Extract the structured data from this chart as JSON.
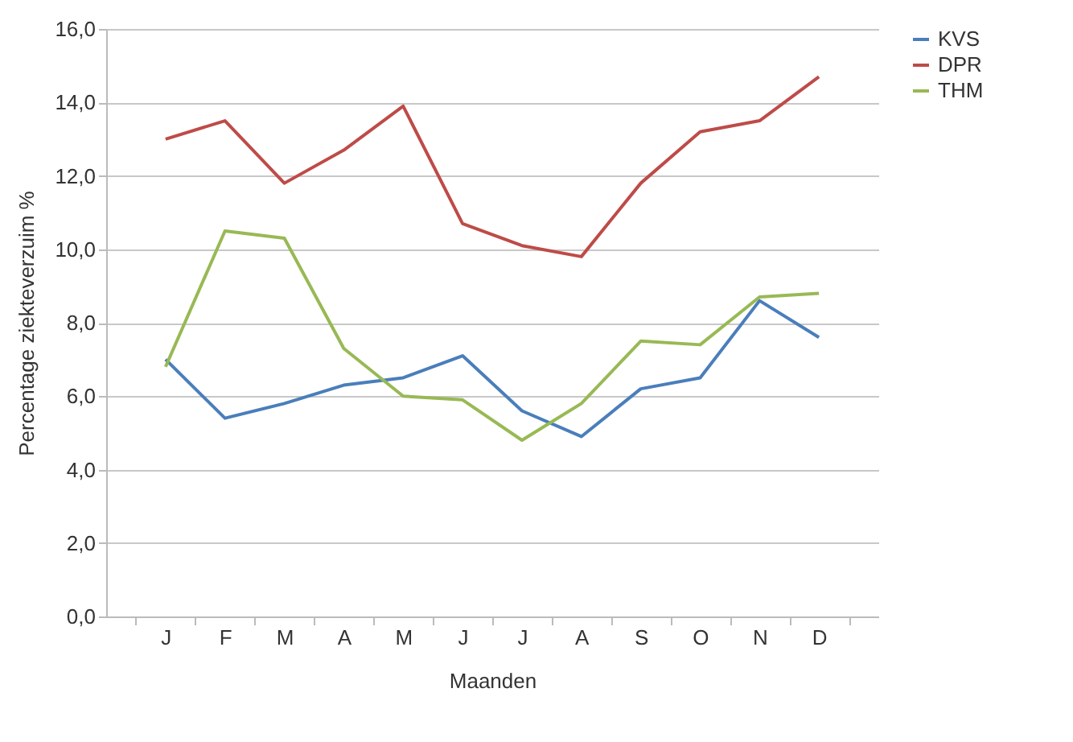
{
  "chart_data": {
    "type": "line",
    "xlabel": "Maanden",
    "ylabel": "Percentage ziekteverzuim %",
    "categories": [
      "J",
      "F",
      "M",
      "A",
      "M",
      "J",
      "J",
      "A",
      "S",
      "O",
      "N",
      "D"
    ],
    "series": [
      {
        "name": "KVS",
        "color": "#4a7ebb",
        "values": [
          7.0,
          5.4,
          5.8,
          6.3,
          6.5,
          7.1,
          5.6,
          4.9,
          6.2,
          6.5,
          8.6,
          7.6
        ]
      },
      {
        "name": "DPR",
        "color": "#be4b48",
        "values": [
          13.0,
          13.5,
          11.8,
          12.7,
          13.9,
          10.7,
          10.1,
          9.8,
          11.8,
          13.2,
          13.5,
          14.7
        ]
      },
      {
        "name": "THM",
        "color": "#98b954",
        "values": [
          6.8,
          10.5,
          10.3,
          7.3,
          6.0,
          5.9,
          4.8,
          5.8,
          7.5,
          7.4,
          8.7,
          8.8
        ]
      }
    ],
    "ylim": [
      0,
      16
    ],
    "yticks": [
      {
        "value": 0,
        "label": "0,0"
      },
      {
        "value": 2,
        "label": "2,0"
      },
      {
        "value": 4,
        "label": "4,0"
      },
      {
        "value": 6,
        "label": "6,0"
      },
      {
        "value": 8,
        "label": "8,0"
      },
      {
        "value": 10,
        "label": "10,0"
      },
      {
        "value": 12,
        "label": "12,0"
      },
      {
        "value": 14,
        "label": "14,0"
      },
      {
        "value": 16,
        "label": "16,0"
      }
    ],
    "grid": "y",
    "legend": "right",
    "marker": "none",
    "line_style": "solid"
  }
}
